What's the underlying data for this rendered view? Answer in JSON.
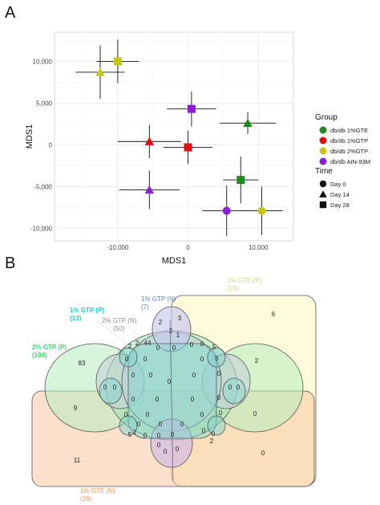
{
  "panelA": {
    "letter": "A",
    "chart_data": {
      "type": "scatter",
      "xlabel": "MDS1",
      "ylabel": "MDS1",
      "xlim": [
        -19000,
        15000
      ],
      "ylim": [
        -11500,
        13500
      ],
      "x_ticks": [
        {
          "v": 0,
          "label": "0"
        },
        {
          "v": 10000,
          "label": "10,000"
        },
        {
          "v": -10000,
          "label": "-10,000"
        }
      ],
      "y_ticks": [
        {
          "v": 10000,
          "label": "10,000"
        },
        {
          "v": 5000,
          "label": "5,000"
        },
        {
          "v": 0,
          "label": "0"
        },
        {
          "v": -5000,
          "label": "-5,000"
        },
        {
          "v": -10000,
          "label": "-10,000"
        }
      ],
      "grid": true,
      "legend_placement": "right",
      "groups": [
        {
          "label": "db/db 1%GTE",
          "color": "#1f8a1f"
        },
        {
          "label": "db/db 1%GTP",
          "color": "#e01010"
        },
        {
          "label": "db/db 2%GTP",
          "color": "#c9c418"
        },
        {
          "label": "db/db AIN-93M",
          "color": "#8a1fd6"
        }
      ],
      "times": [
        {
          "label": "Day 0",
          "shape": "circle"
        },
        {
          "label": "Day 14",
          "shape": "triangle"
        },
        {
          "label": "Day 28",
          "shape": "square"
        }
      ],
      "legend_group_title": "Group",
      "legend_time_title": "Time",
      "points": [
        {
          "group": 2,
          "time": 1,
          "x": -12500,
          "y": 8700,
          "xerr": 3500,
          "yerr": 3200
        },
        {
          "group": 2,
          "time": 2,
          "x": -10000,
          "y": 10000,
          "xerr": 3000,
          "yerr": 2600
        },
        {
          "group": 3,
          "time": 2,
          "x": 500,
          "y": 4300,
          "xerr": 3500,
          "yerr": 2100
        },
        {
          "group": 0,
          "time": 1,
          "x": 8500,
          "y": 2600,
          "xerr": 4000,
          "yerr": 1300
        },
        {
          "group": 1,
          "time": 1,
          "x": -5500,
          "y": 400,
          "xerr": 4500,
          "yerr": 2000
        },
        {
          "group": 1,
          "time": 2,
          "x": 0,
          "y": -300,
          "xerr": 3500,
          "yerr": 2000
        },
        {
          "group": 3,
          "time": 1,
          "x": -5500,
          "y": -5400,
          "xerr": 4300,
          "yerr": 2300
        },
        {
          "group": 0,
          "time": 2,
          "x": 7500,
          "y": -4200,
          "xerr": 2500,
          "yerr": 2800
        },
        {
          "group": 3,
          "time": 0,
          "x": 5500,
          "y": -7900,
          "xerr": 3500,
          "yerr": 3000
        },
        {
          "group": 2,
          "time": 0,
          "x": 10500,
          "y": -7900,
          "xerr": 3000,
          "yerr": 2900
        }
      ]
    }
  },
  "panelB": {
    "letter": "B",
    "sets": [
      {
        "label": "1% GTP (N)",
        "count": "(7)",
        "color": "#5a7fd6"
      },
      {
        "label": "1% GTE (P)",
        "count": "(15)",
        "color": "#d9d36a"
      },
      {
        "label": "1% GTP (P)",
        "count": "(13)",
        "color": "#1ec8d0"
      },
      {
        "label": "2% GTP (N)",
        "count": "(50)",
        "color": "#8f8f8f"
      },
      {
        "label": "2% GTP (P)",
        "count": "(104)",
        "color": "#3fd66a"
      },
      {
        "label": "1% GTE (N)",
        "count": "(29)",
        "color": "#f0955a"
      }
    ],
    "numbers": [
      {
        "t": "6",
        "x": 341,
        "y": 394
      },
      {
        "t": "3",
        "x": 224,
        "y": 399
      },
      {
        "t": "2",
        "x": 200,
        "y": 404
      },
      {
        "t": "2",
        "x": 213,
        "y": 415
      },
      {
        "t": "1",
        "x": 222,
        "y": 420
      },
      {
        "t": "44",
        "x": 184,
        "y": 430
      },
      {
        "t": "2",
        "x": 171,
        "y": 430
      },
      {
        "t": "2",
        "x": 162,
        "y": 434
      },
      {
        "t": "0",
        "x": 197,
        "y": 436
      },
      {
        "t": "0",
        "x": 217,
        "y": 436
      },
      {
        "t": "0",
        "x": 239,
        "y": 432
      },
      {
        "t": "0",
        "x": 252,
        "y": 431
      },
      {
        "t": "5",
        "x": 267,
        "y": 435
      },
      {
        "t": "0",
        "x": 158,
        "y": 450
      },
      {
        "t": "0",
        "x": 181,
        "y": 450
      },
      {
        "t": "0",
        "x": 252,
        "y": 450
      },
      {
        "t": "3",
        "x": 270,
        "y": 449
      },
      {
        "t": "83",
        "x": 102,
        "y": 455
      },
      {
        "t": "2",
        "x": 320,
        "y": 452
      },
      {
        "t": "0",
        "x": 188,
        "y": 470
      },
      {
        "t": "0",
        "x": 242,
        "y": 470
      },
      {
        "t": "0",
        "x": 166,
        "y": 470
      },
      {
        "t": "0",
        "x": 273,
        "y": 468
      },
      {
        "t": "0",
        "x": 131,
        "y": 485
      },
      {
        "t": "0",
        "x": 143,
        "y": 485
      },
      {
        "t": "0",
        "x": 211,
        "y": 478
      },
      {
        "t": "0",
        "x": 287,
        "y": 485
      },
      {
        "t": "0",
        "x": 297,
        "y": 485
      },
      {
        "t": "9",
        "x": 94,
        "y": 511
      },
      {
        "t": "0",
        "x": 196,
        "y": 500
      },
      {
        "t": "0",
        "x": 240,
        "y": 500
      },
      {
        "t": "0",
        "x": 273,
        "y": 498
      },
      {
        "t": "0",
        "x": 166,
        "y": 500
      },
      {
        "t": "0",
        "x": 318,
        "y": 518
      },
      {
        "t": "0",
        "x": 184,
        "y": 519
      },
      {
        "t": "0",
        "x": 252,
        "y": 519
      },
      {
        "t": "0",
        "x": 275,
        "y": 517
      },
      {
        "t": "0",
        "x": 157,
        "y": 519
      },
      {
        "t": "0",
        "x": 200,
        "y": 531
      },
      {
        "t": "0",
        "x": 227,
        "y": 531
      },
      {
        "t": "0",
        "x": 173,
        "y": 531
      },
      {
        "t": "1",
        "x": 168,
        "y": 541
      },
      {
        "t": "0",
        "x": 181,
        "y": 545
      },
      {
        "t": "0",
        "x": 254,
        "y": 539
      },
      {
        "t": "0",
        "x": 266,
        "y": 543
      },
      {
        "t": "5",
        "x": 162,
        "y": 544
      },
      {
        "t": "2",
        "x": 264,
        "y": 552
      },
      {
        "t": "0",
        "x": 198,
        "y": 545
      },
      {
        "t": "0",
        "x": 215,
        "y": 544
      },
      {
        "t": "0",
        "x": 198,
        "y": 557
      },
      {
        "t": "0",
        "x": 206,
        "y": 565
      },
      {
        "t": "0",
        "x": 221,
        "y": 562
      },
      {
        "t": "0",
        "x": 328,
        "y": 567
      },
      {
        "t": "11",
        "x": 96,
        "y": 576
      }
    ]
  }
}
